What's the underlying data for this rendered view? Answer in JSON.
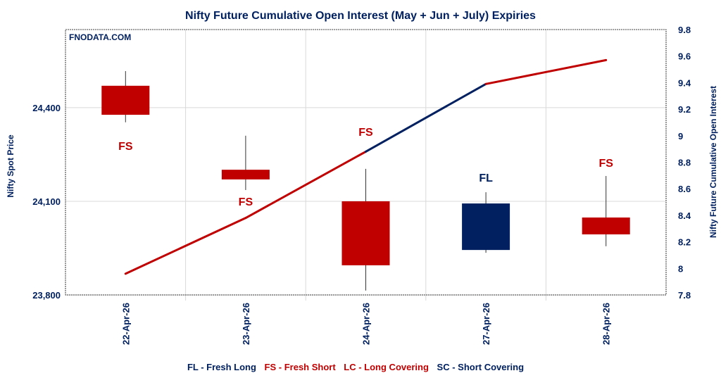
{
  "chart_data": {
    "type": "candlestick+line",
    "title": "Nifty Future Cumulative Open Interest (May + Jun + July) Expiries",
    "watermark": "FNODATA.COM",
    "ylabel_left": "Nifty Spot Price",
    "ylabel_right": "Nifty Future Cumulative Open Interest",
    "ylim_left": [
      23800,
      24650
    ],
    "yticks_left": [
      "23,800",
      "24,100",
      "24,400"
    ],
    "yticks_left_values": [
      23800,
      24100,
      24400
    ],
    "ylim_right": [
      7.8,
      9.8
    ],
    "yticks_right": [
      "7.8",
      "8",
      "8.2",
      "8.4",
      "8.6",
      "8.8",
      "9",
      "9.2",
      "9.4",
      "9.6",
      "9.8"
    ],
    "grid": true,
    "categories": [
      "22-Apr-26",
      "23-Apr-26",
      "24-Apr-26",
      "27-Apr-26",
      "28-Apr-26"
    ],
    "candles": [
      {
        "open": 24470,
        "high": 24517,
        "low": 24353,
        "close": 24377,
        "tag": "FS"
      },
      {
        "open": 24201,
        "high": 24310,
        "low": 24136,
        "close": 24170,
        "tag": "FS"
      },
      {
        "open": 24100,
        "high": 24204,
        "low": 23814,
        "close": 23895,
        "tag": "FS"
      },
      {
        "open": 23944,
        "high": 24129,
        "low": 23935,
        "close": 24093,
        "tag": "FL"
      },
      {
        "open": 24048,
        "high": 24181,
        "low": 23956,
        "close": 23994,
        "tag": "FS"
      }
    ],
    "open_interest": [
      7.96,
      8.38,
      8.88,
      9.39,
      9.57
    ],
    "legend": [
      {
        "text": "FL - Fresh Long",
        "color": "#002060"
      },
      {
        "text": "FS - Fresh Short",
        "color": "#C00000"
      },
      {
        "text": "LC - Long Covering",
        "color": "#C00000"
      },
      {
        "text": "SC - Short Covering",
        "color": "#002060"
      }
    ],
    "colors": {
      "bullish": "#002060",
      "bearish": "#C00000",
      "text": "#002060"
    }
  }
}
